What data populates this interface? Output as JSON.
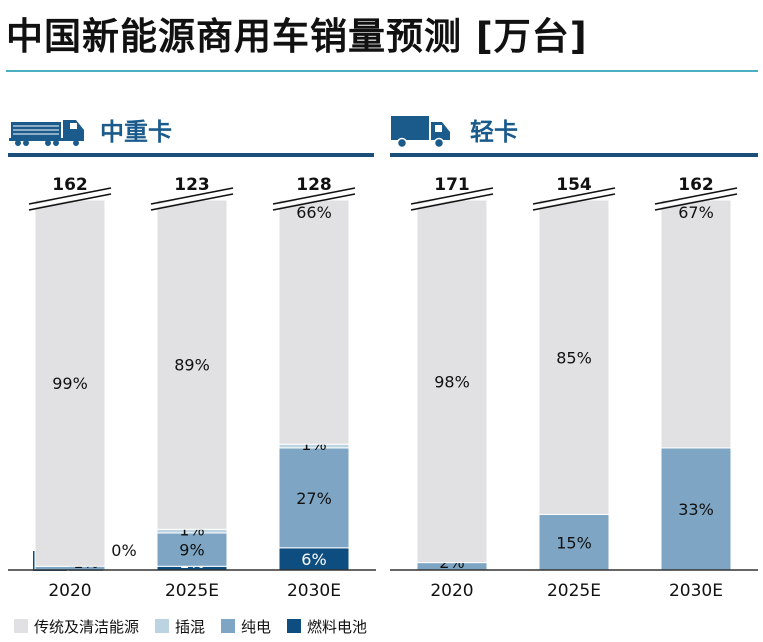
{
  "title": "中国新能源商用车销量预测 [万台]",
  "colors": {
    "traditional": "#e1e1e3",
    "phev": "#bcd4e2",
    "bev": "#7ea6c4",
    "fcev": "#0e4d7f",
    "accent_rule": "#4ab0c1",
    "section": "#1b5b8c"
  },
  "legend": [
    {
      "key": "traditional",
      "label": "传统及清洁能源"
    },
    {
      "key": "phev",
      "label": "插混"
    },
    {
      "key": "bev",
      "label": "纯电"
    },
    {
      "key": "fcev",
      "label": "燃料电池"
    }
  ],
  "sections": [
    {
      "id": "heavy",
      "label": "中重卡",
      "icon": "heavy-truck-icon"
    },
    {
      "id": "light",
      "label": "轻卡",
      "icon": "light-truck-icon"
    }
  ],
  "chart_data": [
    {
      "type": "bar",
      "stacked": true,
      "title": "中重卡",
      "unit": "万台",
      "categories": [
        "2020",
        "2025E",
        "2030E"
      ],
      "totals": [
        162,
        123,
        128
      ],
      "axis_break": true,
      "series": [
        {
          "name": "燃料电池",
          "key": "fcev",
          "values": [
            0,
            1,
            6
          ],
          "labels": [
            "0%",
            "1%",
            "6%"
          ]
        },
        {
          "name": "纯电",
          "key": "bev",
          "values": [
            1,
            9,
            27
          ],
          "labels": [
            "1%",
            "9%",
            "27%"
          ]
        },
        {
          "name": "插混",
          "key": "phev",
          "values": [
            0,
            1,
            1
          ],
          "labels": [
            "0%",
            "1%",
            "1%"
          ]
        },
        {
          "name": "传统及清洁能源",
          "key": "traditional",
          "values": [
            99,
            89,
            66
          ],
          "labels": [
            "99%",
            "89%",
            "66%"
          ]
        }
      ]
    },
    {
      "type": "bar",
      "stacked": true,
      "title": "轻卡",
      "unit": "万台",
      "categories": [
        "2020",
        "2025E",
        "2030E"
      ],
      "totals": [
        171,
        154,
        162
      ],
      "axis_break": true,
      "series": [
        {
          "name": "纯电",
          "key": "bev",
          "values": [
            2,
            15,
            33
          ],
          "labels": [
            "2%",
            "15%",
            "33%"
          ]
        },
        {
          "name": "传统及清洁能源",
          "key": "traditional",
          "values": [
            98,
            85,
            67
          ],
          "labels": [
            "98%",
            "85%",
            "67%"
          ]
        }
      ]
    }
  ]
}
